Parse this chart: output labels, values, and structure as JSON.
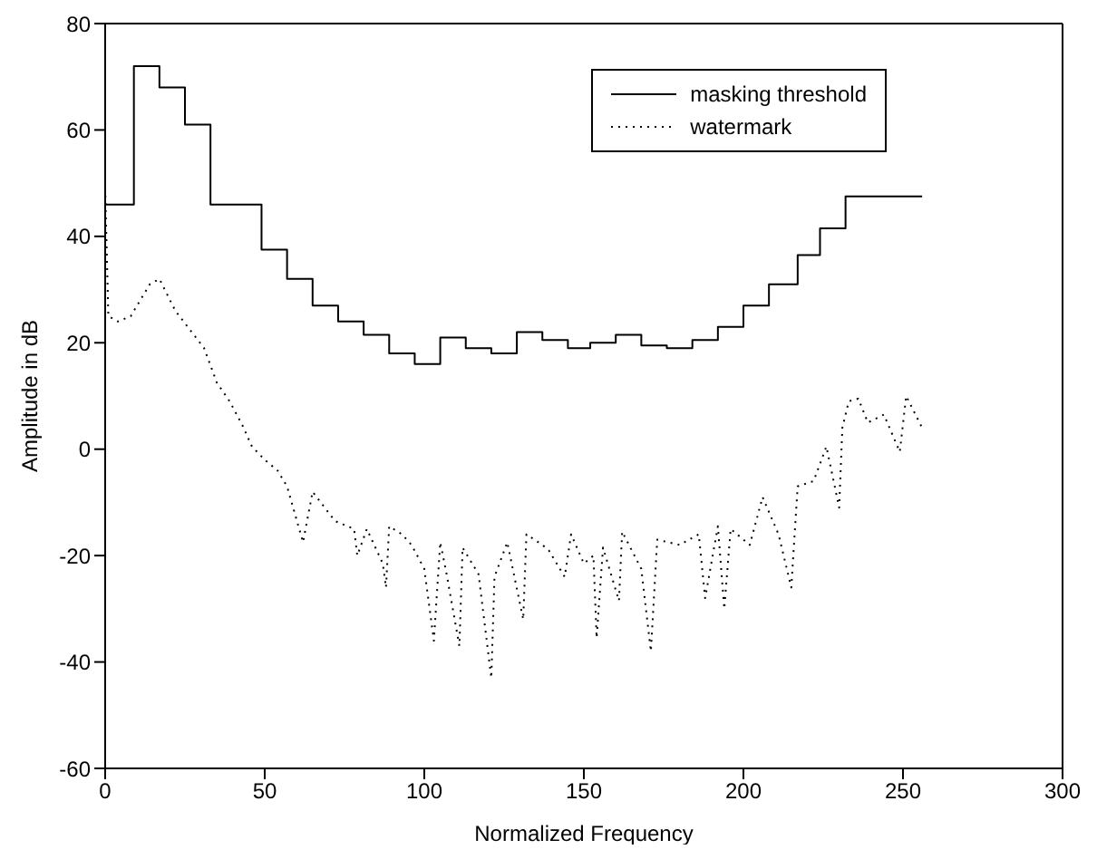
{
  "chart_data": {
    "type": "line",
    "xlabel": "Normalized Frequency",
    "ylabel": "Amplitude in dB",
    "xlim": [
      0,
      300
    ],
    "xticks": [
      0,
      50,
      100,
      150,
      200,
      250,
      300
    ],
    "ylim": [
      -60,
      80
    ],
    "yticks": [
      -60,
      -40,
      -20,
      0,
      20,
      40,
      60,
      80
    ],
    "grid": false,
    "legend": "top right",
    "series": [
      {
        "name": "masking threshold",
        "type": "step",
        "color": "#000000",
        "line_style": "solid",
        "x": [
          0,
          9,
          17,
          25,
          33,
          41,
          49,
          57,
          65,
          73,
          81,
          89,
          97,
          105,
          113,
          121,
          129,
          137,
          145,
          152,
          160,
          168,
          176,
          184,
          192,
          200,
          208,
          217,
          224,
          232,
          256
        ],
        "values": [
          46,
          72,
          68,
          61,
          46,
          46,
          37.5,
          32,
          27,
          24,
          21.5,
          18,
          16,
          21,
          19,
          18,
          22,
          20.5,
          19,
          20,
          21.5,
          19.5,
          19,
          20.5,
          23,
          27,
          31,
          36.5,
          41.5,
          47.5,
          47.5
        ]
      },
      {
        "name": "watermark",
        "type": "line",
        "color": "#000000",
        "line_style": "dotted",
        "x": [
          0,
          1,
          4,
          8,
          14,
          17,
          22,
          31,
          35,
          39,
          43,
          46,
          50,
          54,
          57,
          62,
          65,
          72,
          78,
          79,
          82,
          87,
          88,
          89,
          93,
          96,
          100,
          103,
          105,
          107,
          111,
          112,
          117,
          121,
          122,
          126,
          131,
          132,
          137,
          139,
          144,
          146,
          150,
          153,
          154,
          156,
          161,
          162,
          168,
          171,
          173,
          180,
          186,
          188,
          192,
          194,
          196,
          202,
          206,
          211,
          215,
          217,
          222,
          226,
          230,
          231,
          233,
          236,
          239,
          244,
          249,
          251,
          256
        ],
        "values": [
          49,
          25,
          24,
          25,
          31,
          32,
          26,
          19,
          12.5,
          9,
          4.5,
          0.5,
          -2,
          -4,
          -7,
          -17.5,
          -8,
          -13.5,
          -15,
          -20,
          -15,
          -21.5,
          -26,
          -14.5,
          -16,
          -18,
          -22.5,
          -36,
          -17.5,
          -23.5,
          -37,
          -18.5,
          -23.5,
          -43,
          -24,
          -17.5,
          -32,
          -16,
          -18,
          -19,
          -24,
          -16,
          -21.5,
          -20,
          -35.5,
          -18.5,
          -28.5,
          -15.5,
          -22.5,
          -38,
          -17,
          -18,
          -16,
          -28,
          -14.5,
          -30,
          -15,
          -18,
          -9,
          -16,
          -26,
          -7,
          -6,
          0.5,
          -11,
          4,
          9,
          9.5,
          5,
          6.5,
          -0.5,
          10,
          4
        ]
      }
    ]
  }
}
